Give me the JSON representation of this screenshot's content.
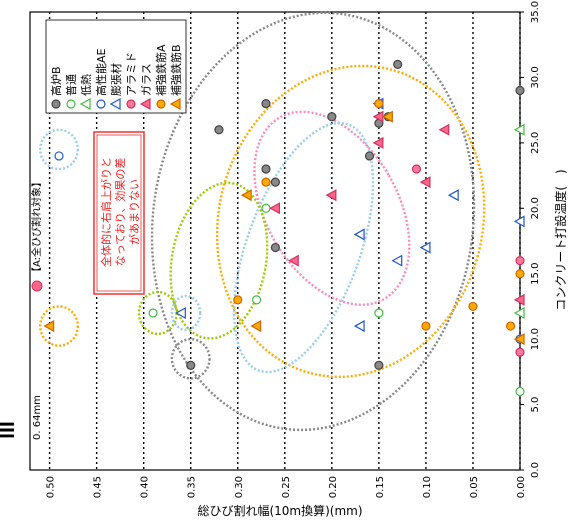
{
  "chart_data": {
    "type": "scatter",
    "orientation": "rotated-90-ccw",
    "title_fragment": "Ⅲ",
    "xlabel": "コンクリート打設温度(　)",
    "ylabel": "総ひび割れ幅(10m換算)(mm)",
    "xlim": [
      0,
      35
    ],
    "ylim": [
      0,
      0.5
    ],
    "x_ticks": [
      "0.0",
      "5.0",
      "10.0",
      "15.0",
      "20.0",
      "25.0",
      "30.0",
      "35.0"
    ],
    "y_ticks": [
      "0.00",
      "0.05",
      "0.10",
      "0.15",
      "0.20",
      "0.25",
      "0.30",
      "0.35",
      "0.40",
      "0.45",
      "0.50"
    ],
    "grid": "horizontal-dotted",
    "legend_position": "top-right",
    "annotation_threshold": "0. 64mm",
    "annotation_target": "【A:全ひび割れ対象】",
    "annotation_note": [
      "全体的に右肩上がりと",
      "なっており、効果の差",
      "があまりない"
    ],
    "series": [
      {
        "name": "高炉B",
        "marker": "circle",
        "color": "#888888",
        "edge": "#444444",
        "points": [
          [
            29,
            0
          ],
          [
            31,
            0.13
          ],
          [
            27,
            0.14
          ],
          [
            26.5,
            0.15
          ],
          [
            24,
            0.16
          ],
          [
            17,
            0.26
          ],
          [
            23,
            0.27
          ],
          [
            22,
            0.26
          ],
          [
            28,
            0.27
          ],
          [
            26,
            0.32
          ],
          [
            28,
            0.37
          ],
          [
            8,
            0.15
          ],
          [
            8,
            0.35
          ],
          [
            27,
            0.2
          ]
        ]
      },
      {
        "name": "普通",
        "marker": "circle",
        "color": "#ffffff",
        "edge": "#44bb44",
        "points": [
          [
            6,
            0
          ],
          [
            20,
            0.27
          ],
          [
            13,
            0.28
          ],
          [
            12,
            0.39
          ],
          [
            12,
            0.15
          ]
        ]
      },
      {
        "name": "低熱",
        "marker": "triangle",
        "color": "#ffffff",
        "edge": "#44bb44",
        "points": [
          [
            26,
            0
          ],
          [
            12,
            0
          ]
        ]
      },
      {
        "name": "高性能AE",
        "marker": "circle",
        "color": "#ffffff",
        "edge": "#2255cc",
        "points": [
          [
            24,
            0.49
          ],
          [
            10,
            0
          ]
        ]
      },
      {
        "name": "膨張材",
        "marker": "triangle",
        "color": "#ffffff",
        "edge": "#2255cc",
        "points": [
          [
            19,
            0
          ],
          [
            21,
            0.07
          ],
          [
            17,
            0.1
          ],
          [
            16,
            0.13
          ],
          [
            18,
            0.17
          ],
          [
            28,
            0.15
          ],
          [
            11,
            0.17
          ],
          [
            12,
            0.36
          ]
        ]
      },
      {
        "name": "アラミド",
        "marker": "circle",
        "color": "#ff7799",
        "edge": "#cc3366",
        "points": [
          [
            9,
            0
          ],
          [
            16,
            0
          ],
          [
            23,
            0.11
          ]
        ]
      },
      {
        "name": "ガラス",
        "marker": "triangle",
        "color": "#ff6688",
        "edge": "#cc3366",
        "points": [
          [
            13,
            0
          ],
          [
            16,
            0.24
          ],
          [
            20,
            0.26
          ],
          [
            21,
            0.2
          ],
          [
            25,
            0.15
          ],
          [
            22,
            0.1
          ],
          [
            26,
            0.08
          ],
          [
            27,
            0.15
          ]
        ]
      },
      {
        "name": "補強鉄筋A",
        "marker": "circle",
        "color": "#ffaa00",
        "edge": "#cc6600",
        "points": [
          [
            11,
            0.01
          ],
          [
            15,
            0
          ],
          [
            11,
            0.1
          ],
          [
            13,
            0.3
          ],
          [
            22,
            0.27
          ],
          [
            28,
            0.15
          ],
          [
            12.5,
            0.05
          ]
        ]
      },
      {
        "name": "補強鉄筋B",
        "marker": "triangle",
        "color": "#ffaa00",
        "edge": "#cc6600",
        "points": [
          [
            10,
            0
          ],
          [
            11,
            0.5
          ],
          [
            11,
            0.28
          ],
          [
            21,
            0.29
          ],
          [
            27,
            0.14
          ]
        ]
      }
    ]
  }
}
